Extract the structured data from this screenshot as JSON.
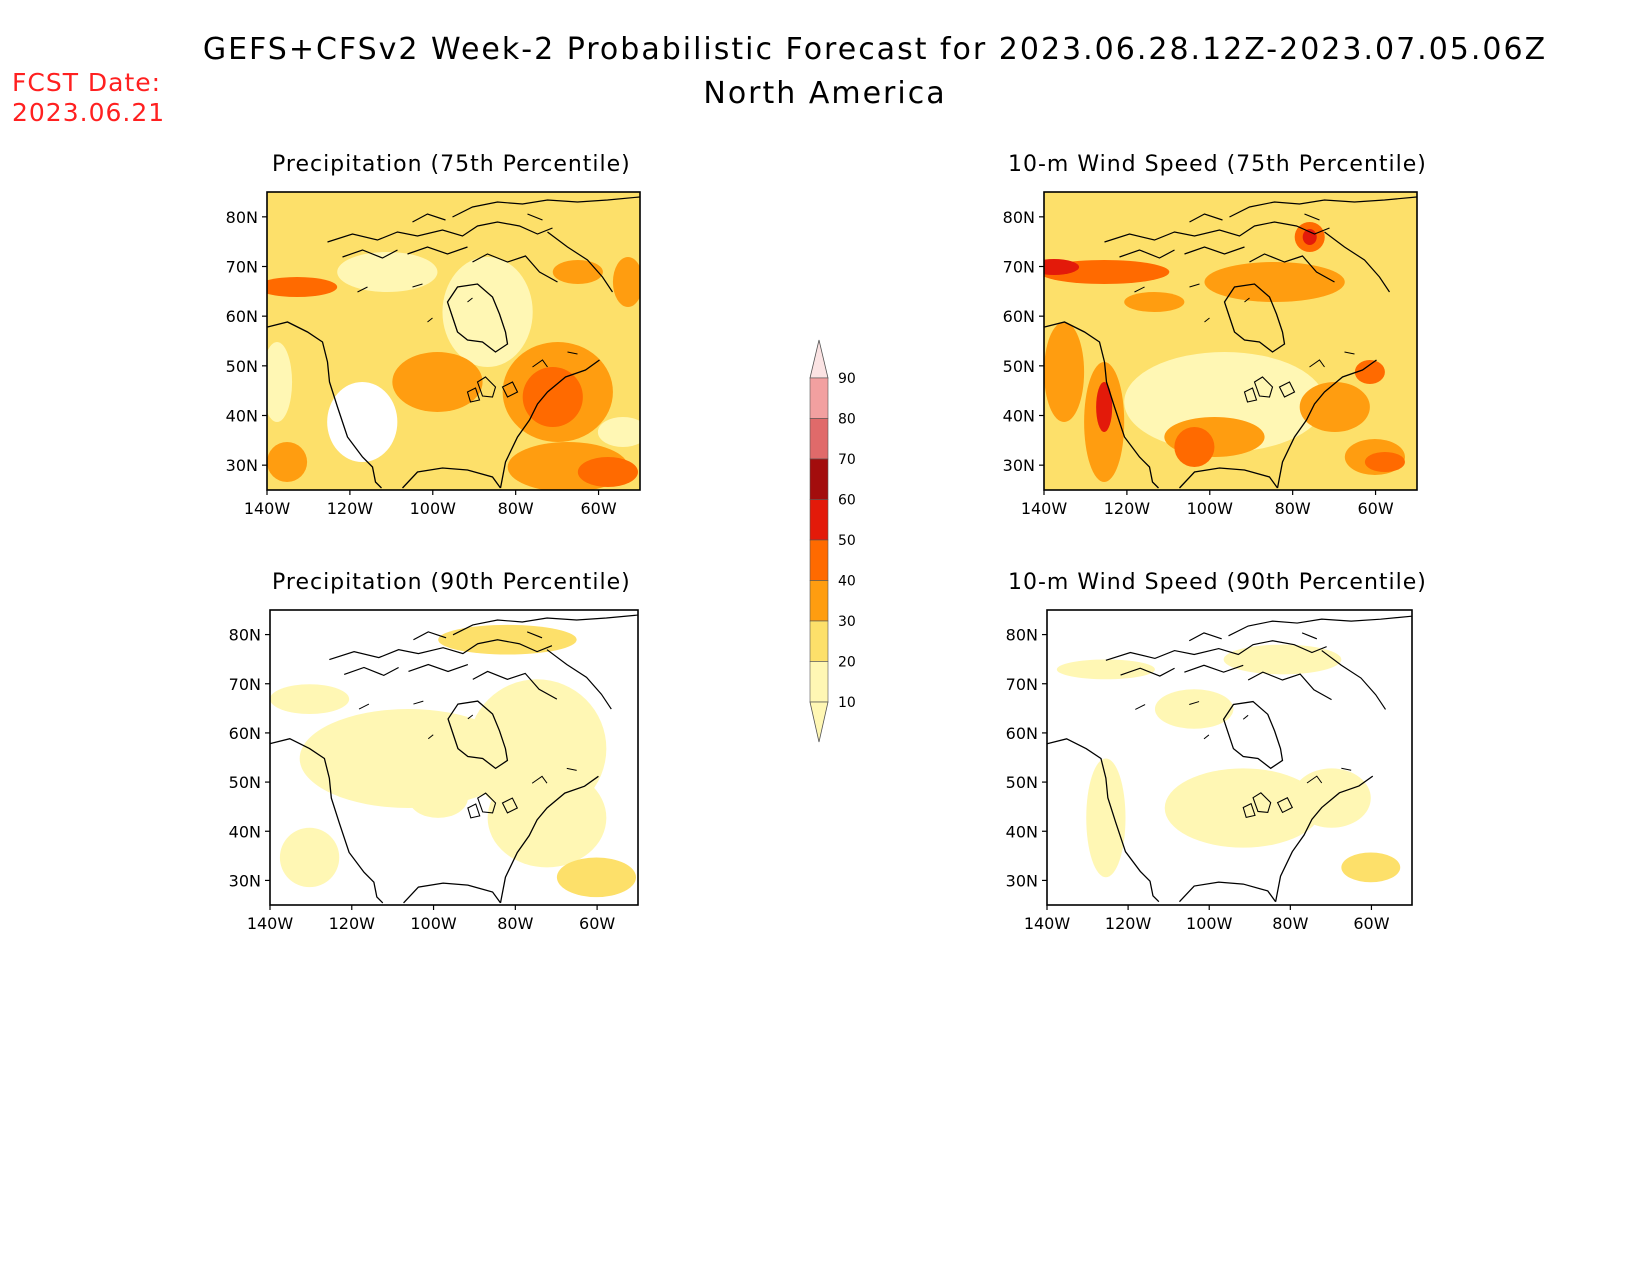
{
  "header": {
    "title": "GEFS+CFSv2 Week-2 Probabilistic Forecast for 2023.06.28.12Z-2023.07.05.06Z",
    "region": "North America",
    "fcst_label": "FCST Date:",
    "fcst_date": "2023.06.21"
  },
  "panels": [
    {
      "title": "Precipitation (75th Percentile)",
      "level": "high"
    },
    {
      "title": "10-m Wind Speed (75th Percentile)",
      "level": "high"
    },
    {
      "title": "Precipitation (90th Percentile)",
      "level": "low"
    },
    {
      "title": "10-m Wind Speed (90th Percentile)",
      "level": "low"
    }
  ],
  "axes": {
    "lon_ticks": [
      "140W",
      "120W",
      "100W",
      "80W",
      "60W"
    ],
    "lat_ticks": [
      "80N",
      "70N",
      "60N",
      "50N",
      "40N",
      "30N"
    ]
  },
  "colorbar": {
    "levels": [
      "90",
      "80",
      "70",
      "60",
      "50",
      "40",
      "30",
      "20",
      "10"
    ],
    "colors": [
      "#fbe3e3",
      "#f2a0a0",
      "#e06a6a",
      "#a30d0d",
      "#e31a0a",
      "#ff6a00",
      "#ff9d10",
      "#fde06a",
      "#fff7b4"
    ]
  }
}
